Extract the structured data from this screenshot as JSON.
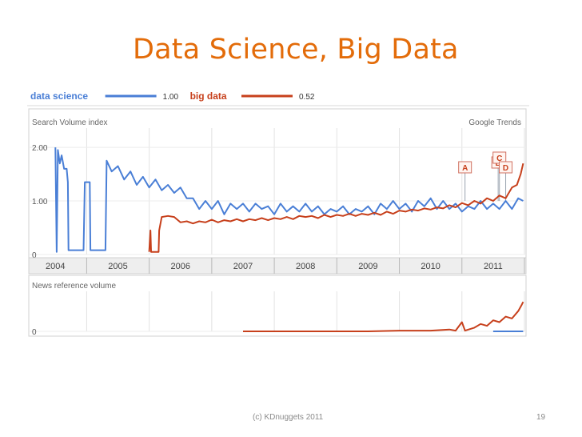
{
  "slide": {
    "title": "Data Science, Big Data",
    "footer_left": "(c) KDnuggets 2011",
    "page_number": "19"
  },
  "chart_data": {
    "type": "line",
    "source_label": "Google Trends",
    "legend": [
      {
        "name": "data science",
        "value": "1.00",
        "color": "#4a7fd6"
      },
      {
        "name": "big data",
        "value": "0.52",
        "color": "#c7401c"
      }
    ],
    "panels": [
      {
        "title": "Search Volume index",
        "y_ticks": [
          "2.00",
          "1.00",
          "0"
        ],
        "ylim": [
          0,
          2.3
        ],
        "series": [
          {
            "name": "data science",
            "color": "#4a7fd6",
            "points": [
              [
                2004.0,
                2.0
              ],
              [
                2004.02,
                0.05
              ],
              [
                2004.04,
                1.95
              ],
              [
                2004.07,
                1.7
              ],
              [
                2004.1,
                1.85
              ],
              [
                2004.14,
                1.6
              ],
              [
                2004.18,
                1.6
              ],
              [
                2004.2,
                1.35
              ],
              [
                2004.21,
                0.08
              ],
              [
                2004.45,
                0.08
              ],
              [
                2004.47,
                1.35
              ],
              [
                2004.55,
                1.35
              ],
              [
                2004.56,
                0.08
              ],
              [
                2004.8,
                0.08
              ],
              [
                2004.82,
                1.75
              ],
              [
                2004.9,
                1.55
              ],
              [
                2005.0,
                1.65
              ],
              [
                2005.1,
                1.4
              ],
              [
                2005.2,
                1.55
              ],
              [
                2005.3,
                1.3
              ],
              [
                2005.4,
                1.45
              ],
              [
                2005.5,
                1.25
              ],
              [
                2005.6,
                1.4
              ],
              [
                2005.7,
                1.2
              ],
              [
                2005.8,
                1.3
              ],
              [
                2005.9,
                1.15
              ],
              [
                2006.0,
                1.25
              ],
              [
                2006.1,
                1.05
              ],
              [
                2006.2,
                1.05
              ],
              [
                2006.3,
                0.85
              ],
              [
                2006.4,
                1.0
              ],
              [
                2006.5,
                0.85
              ],
              [
                2006.6,
                1.0
              ],
              [
                2006.7,
                0.75
              ],
              [
                2006.8,
                0.95
              ],
              [
                2006.9,
                0.85
              ],
              [
                2007.0,
                0.95
              ],
              [
                2007.1,
                0.8
              ],
              [
                2007.2,
                0.95
              ],
              [
                2007.3,
                0.85
              ],
              [
                2007.4,
                0.9
              ],
              [
                2007.5,
                0.75
              ],
              [
                2007.6,
                0.95
              ],
              [
                2007.7,
                0.8
              ],
              [
                2007.8,
                0.9
              ],
              [
                2007.9,
                0.8
              ],
              [
                2008.0,
                0.95
              ],
              [
                2008.1,
                0.8
              ],
              [
                2008.2,
                0.9
              ],
              [
                2008.3,
                0.75
              ],
              [
                2008.4,
                0.85
              ],
              [
                2008.5,
                0.8
              ],
              [
                2008.6,
                0.9
              ],
              [
                2008.7,
                0.75
              ],
              [
                2008.8,
                0.85
              ],
              [
                2008.9,
                0.8
              ],
              [
                2009.0,
                0.9
              ],
              [
                2009.1,
                0.75
              ],
              [
                2009.2,
                0.95
              ],
              [
                2009.3,
                0.85
              ],
              [
                2009.4,
                1.0
              ],
              [
                2009.5,
                0.85
              ],
              [
                2009.6,
                0.95
              ],
              [
                2009.7,
                0.8
              ],
              [
                2009.8,
                1.0
              ],
              [
                2009.9,
                0.9
              ],
              [
                2010.0,
                1.05
              ],
              [
                2010.1,
                0.85
              ],
              [
                2010.2,
                1.0
              ],
              [
                2010.3,
                0.85
              ],
              [
                2010.4,
                0.95
              ],
              [
                2010.5,
                0.8
              ],
              [
                2010.6,
                0.9
              ],
              [
                2010.7,
                0.85
              ],
              [
                2010.8,
                1.0
              ],
              [
                2010.9,
                0.85
              ],
              [
                2011.0,
                0.95
              ],
              [
                2011.1,
                0.85
              ],
              [
                2011.2,
                1.0
              ],
              [
                2011.3,
                0.85
              ],
              [
                2011.4,
                1.05
              ],
              [
                2011.48,
                1.0
              ]
            ]
          },
          {
            "name": "big data",
            "color": "#c7401c",
            "points": [
              [
                2005.5,
                0.05
              ],
              [
                2005.52,
                0.45
              ],
              [
                2005.53,
                0.05
              ],
              [
                2005.65,
                0.05
              ],
              [
                2005.66,
                0.45
              ],
              [
                2005.7,
                0.7
              ],
              [
                2005.8,
                0.72
              ],
              [
                2005.9,
                0.7
              ],
              [
                2006.0,
                0.6
              ],
              [
                2006.1,
                0.62
              ],
              [
                2006.2,
                0.58
              ],
              [
                2006.3,
                0.62
              ],
              [
                2006.4,
                0.6
              ],
              [
                2006.5,
                0.65
              ],
              [
                2006.6,
                0.6
              ],
              [
                2006.7,
                0.64
              ],
              [
                2006.8,
                0.62
              ],
              [
                2006.9,
                0.66
              ],
              [
                2007.0,
                0.62
              ],
              [
                2007.1,
                0.66
              ],
              [
                2007.2,
                0.64
              ],
              [
                2007.3,
                0.68
              ],
              [
                2007.4,
                0.64
              ],
              [
                2007.5,
                0.68
              ],
              [
                2007.6,
                0.66
              ],
              [
                2007.7,
                0.7
              ],
              [
                2007.8,
                0.66
              ],
              [
                2007.9,
                0.72
              ],
              [
                2008.0,
                0.7
              ],
              [
                2008.1,
                0.72
              ],
              [
                2008.2,
                0.68
              ],
              [
                2008.3,
                0.74
              ],
              [
                2008.4,
                0.7
              ],
              [
                2008.5,
                0.74
              ],
              [
                2008.6,
                0.72
              ],
              [
                2008.7,
                0.76
              ],
              [
                2008.8,
                0.72
              ],
              [
                2008.9,
                0.76
              ],
              [
                2009.0,
                0.74
              ],
              [
                2009.1,
                0.78
              ],
              [
                2009.2,
                0.74
              ],
              [
                2009.3,
                0.8
              ],
              [
                2009.4,
                0.76
              ],
              [
                2009.5,
                0.82
              ],
              [
                2009.6,
                0.8
              ],
              [
                2009.7,
                0.84
              ],
              [
                2009.8,
                0.82
              ],
              [
                2009.9,
                0.86
              ],
              [
                2010.0,
                0.84
              ],
              [
                2010.1,
                0.88
              ],
              [
                2010.2,
                0.86
              ],
              [
                2010.3,
                0.92
              ],
              [
                2010.4,
                0.88
              ],
              [
                2010.5,
                0.96
              ],
              [
                2010.6,
                0.92
              ],
              [
                2010.7,
                1.0
              ],
              [
                2010.8,
                0.95
              ],
              [
                2010.9,
                1.05
              ],
              [
                2011.0,
                1.0
              ],
              [
                2011.1,
                1.1
              ],
              [
                2011.2,
                1.05
              ],
              [
                2011.3,
                1.25
              ],
              [
                2011.38,
                1.3
              ],
              [
                2011.44,
                1.5
              ],
              [
                2011.48,
                1.7
              ]
            ]
          }
        ]
      },
      {
        "title": "News reference volume",
        "y_ticks": [
          "0"
        ],
        "ylim": [
          0,
          1
        ],
        "series": [
          {
            "name": "big data",
            "color": "#c7401c",
            "points": [
              [
                2007.0,
                0.0
              ],
              [
                2008.0,
                0.0
              ],
              [
                2009.0,
                0.0
              ],
              [
                2009.5,
                0.02
              ],
              [
                2010.0,
                0.02
              ],
              [
                2010.3,
                0.05
              ],
              [
                2010.4,
                0.02
              ],
              [
                2010.5,
                0.25
              ],
              [
                2010.55,
                0.02
              ],
              [
                2010.7,
                0.1
              ],
              [
                2010.8,
                0.2
              ],
              [
                2010.9,
                0.15
              ],
              [
                2011.0,
                0.3
              ],
              [
                2011.1,
                0.25
              ],
              [
                2011.2,
                0.4
              ],
              [
                2011.3,
                0.35
              ],
              [
                2011.4,
                0.55
              ],
              [
                2011.45,
                0.7
              ],
              [
                2011.48,
                0.8
              ]
            ]
          },
          {
            "name": "data science",
            "color": "#4a7fd6",
            "points": [
              [
                2011.0,
                0.0
              ],
              [
                2011.48,
                0.0
              ]
            ]
          }
        ]
      }
    ],
    "x_ticks": [
      "2004",
      "2005",
      "2006",
      "2007",
      "2008",
      "2009",
      "2010",
      "2011"
    ],
    "xlim": [
      2003.6,
      2011.5
    ],
    "annotations": [
      {
        "label": "A",
        "x": 2010.55
      },
      {
        "label": "B",
        "x": 2011.08
      },
      {
        "label": "C",
        "x": 2011.1
      },
      {
        "label": "D",
        "x": 2011.2
      }
    ]
  }
}
